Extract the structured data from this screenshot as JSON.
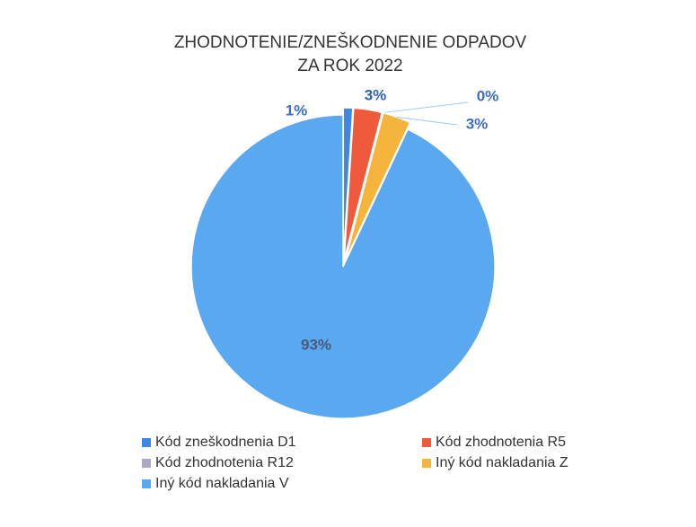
{
  "chart_data": {
    "type": "pie",
    "title": [
      "ZHODNOTENIE/ZNEŠKODNENIE ODPADOV",
      "ZA ROK 2022"
    ],
    "categories": [
      "Kód zneškodnenia D1",
      "Kód zhodnotenia R5",
      "Kód zhodnotenia R12",
      "Iný kód nakladania Z",
      "Iný kód nakladania V"
    ],
    "values": [
      1,
      3,
      0,
      3,
      93
    ],
    "value_labels": [
      "1%",
      "3%",
      "0%",
      "3%",
      "93%"
    ],
    "colors": [
      "#3f86e6",
      "#ef5a3c",
      "#aeaac6",
      "#f5b43c",
      "#5aa8ef"
    ],
    "legend": "bottom"
  }
}
